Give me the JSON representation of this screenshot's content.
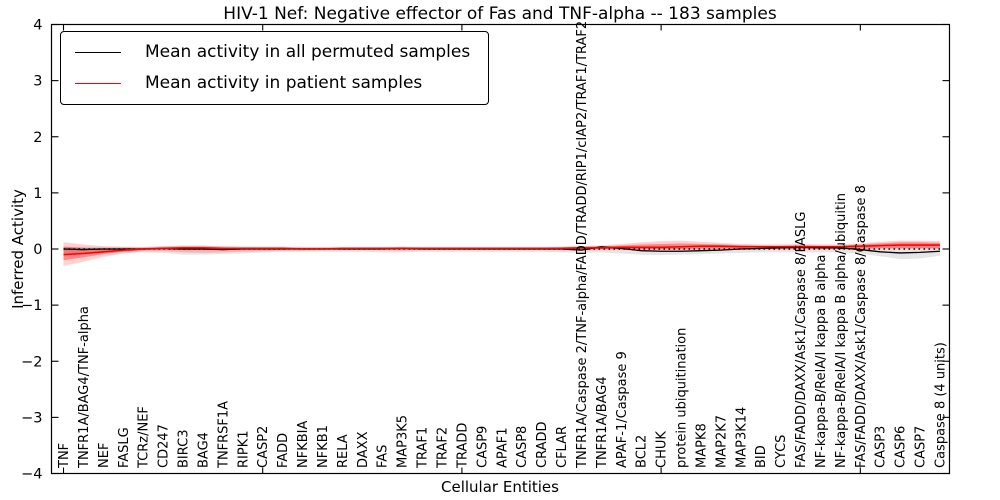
{
  "figure": {
    "title": "HIV-1 Nef: Negative effector of Fas and TNF-alpha -- 183 samples",
    "xlabel": "Cellular Entities",
    "ylabel": "Inferred Activity",
    "sample_count_text": "183 samples"
  },
  "chart_data": {
    "type": "line",
    "title": "HIV-1 Nef: Negative effector of Fas and TNF-alpha -- 183 samples",
    "xlabel": "Cellular Entities",
    "ylabel": "Inferred Activity",
    "ylim": [
      -4,
      4
    ],
    "yticks": [
      -4,
      -3,
      -2,
      -1,
      0,
      1,
      2,
      3,
      4
    ],
    "x_major_ticks": [
      0,
      10,
      20,
      30,
      40
    ],
    "grid": false,
    "legend_position": "upper left",
    "categories": [
      "TNF",
      "TNFR1A/BAG4/TNF-alpha",
      "NEF",
      "FASLG",
      "TCRz/NEF",
      "CD247",
      "BIRC3",
      "BAG4",
      "TNFRSF1A",
      "RIPK1",
      "CASP2",
      "FADD",
      "NFKBIA",
      "NFKB1",
      "RELA",
      "DAXX",
      "FAS",
      "MAP3K5",
      "TRAF1",
      "TRAF2",
      "TRADD",
      "CASP9",
      "APAF1",
      "CASP8",
      "CRADD",
      "CFLAR",
      "TNFR1A/Caspase 2/TNF-alpha/FADD/TRADD/RIP1/cIAP2/TRAF1/TRAF2",
      "TNFR1A/BAG4",
      "APAF-1/Caspase 9",
      "BCL2",
      "CHUK",
      "protein ubiquitination",
      "MAPK8",
      "MAP2K7",
      "MAP3K14",
      "BID",
      "CYCS",
      "FAS/FADD/DAXX/Ask1/Caspase 8/FASLG",
      "NF-kappa-B/RelA/I kappa B alpha",
      "NF-kappa-B/RelA/I kappa B alpha/ubiquitin",
      "FAS/FADD/DAXX/Ask1/Caspase 8/Caspase 8",
      "CASP3",
      "CASP6",
      "CASP7",
      "Caspase 8 (4 units)"
    ],
    "series": [
      {
        "name": "Mean activity in all permuted samples",
        "color": "#000000",
        "values": [
          0.0,
          -0.01,
          0.0,
          0.0,
          0.0,
          0.01,
          0.0,
          0.0,
          -0.01,
          0.0,
          0.0,
          0.0,
          0.0,
          0.0,
          0.0,
          0.0,
          0.0,
          0.01,
          0.0,
          0.0,
          0.0,
          0.0,
          0.0,
          0.0,
          0.0,
          0.0,
          -0.02,
          0.04,
          0.01,
          -0.03,
          -0.04,
          -0.04,
          -0.03,
          -0.02,
          0.0,
          0.01,
          0.02,
          0.03,
          0.02,
          0.02,
          -0.01,
          -0.05,
          -0.07,
          -0.06,
          -0.04
        ]
      },
      {
        "name": "Mean activity in patient samples",
        "color": "#ff0000",
        "values": [
          -0.1,
          -0.08,
          -0.05,
          -0.02,
          0.0,
          0.01,
          0.02,
          0.02,
          0.01,
          0.01,
          0.01,
          0.01,
          0.0,
          0.0,
          0.01,
          0.01,
          0.01,
          0.01,
          0.01,
          0.01,
          0.01,
          0.01,
          0.01,
          0.01,
          0.01,
          0.01,
          0.02,
          0.02,
          0.03,
          0.03,
          0.03,
          0.04,
          0.05,
          0.05,
          0.04,
          0.04,
          0.04,
          0.04,
          0.04,
          0.04,
          0.05,
          0.06,
          0.07,
          0.07,
          0.07
        ]
      }
    ],
    "bands": [
      {
        "name": "permuted-range",
        "color": "#000000",
        "opacity": 0.1,
        "lower": [
          -0.1,
          -0.09,
          -0.07,
          -0.06,
          -0.06,
          -0.07,
          -0.1,
          -0.1,
          -0.09,
          -0.08,
          -0.06,
          -0.05,
          -0.05,
          -0.05,
          -0.05,
          -0.05,
          -0.06,
          -0.06,
          -0.05,
          -0.05,
          -0.05,
          -0.05,
          -0.05,
          -0.05,
          -0.05,
          -0.06,
          -0.07,
          -0.06,
          -0.08,
          -0.1,
          -0.11,
          -0.1,
          -0.09,
          -0.08,
          -0.07,
          -0.06,
          -0.06,
          -0.06,
          -0.06,
          -0.06,
          -0.08,
          -0.13,
          -0.18,
          -0.17,
          -0.12
        ],
        "upper": [
          0.04,
          0.04,
          0.04,
          0.04,
          0.04,
          0.05,
          0.05,
          0.05,
          0.05,
          0.04,
          0.04,
          0.04,
          0.04,
          0.04,
          0.04,
          0.04,
          0.04,
          0.04,
          0.04,
          0.04,
          0.04,
          0.04,
          0.04,
          0.04,
          0.04,
          0.04,
          0.05,
          0.06,
          0.05,
          0.04,
          0.04,
          0.04,
          0.04,
          0.04,
          0.04,
          0.04,
          0.05,
          0.05,
          0.05,
          0.05,
          0.04,
          0.04,
          0.04,
          0.04,
          0.04
        ]
      },
      {
        "name": "patient-range-outer",
        "color": "#ff0000",
        "opacity": 0.18,
        "lower": [
          -0.3,
          -0.23,
          -0.14,
          -0.08,
          -0.04,
          -0.04,
          -0.06,
          -0.07,
          -0.06,
          -0.05,
          -0.04,
          -0.03,
          -0.03,
          -0.02,
          -0.02,
          -0.02,
          -0.02,
          -0.03,
          -0.02,
          -0.02,
          -0.02,
          -0.02,
          -0.02,
          -0.02,
          -0.02,
          -0.02,
          -0.03,
          -0.02,
          -0.02,
          -0.02,
          -0.02,
          -0.02,
          -0.01,
          -0.01,
          -0.01,
          -0.01,
          -0.01,
          -0.01,
          -0.01,
          -0.01,
          -0.01,
          0.0,
          0.0,
          0.0,
          0.0
        ],
        "upper": [
          0.12,
          0.08,
          0.05,
          0.04,
          0.03,
          0.05,
          0.06,
          0.06,
          0.05,
          0.04,
          0.04,
          0.04,
          0.03,
          0.03,
          0.03,
          0.03,
          0.03,
          0.04,
          0.03,
          0.03,
          0.03,
          0.03,
          0.03,
          0.03,
          0.03,
          0.04,
          0.05,
          0.06,
          0.09,
          0.12,
          0.14,
          0.15,
          0.13,
          0.11,
          0.09,
          0.08,
          0.08,
          0.09,
          0.08,
          0.08,
          0.1,
          0.13,
          0.15,
          0.15,
          0.14
        ]
      },
      {
        "name": "patient-range-inner",
        "color": "#ff0000",
        "opacity": 0.35,
        "lower": [
          -0.2,
          -0.15,
          -0.09,
          -0.05,
          -0.02,
          -0.01,
          -0.02,
          -0.02,
          -0.02,
          -0.01,
          -0.01,
          -0.01,
          -0.01,
          -0.01,
          -0.01,
          -0.01,
          -0.01,
          -0.01,
          -0.01,
          -0.01,
          -0.01,
          -0.01,
          -0.01,
          -0.01,
          -0.01,
          -0.01,
          -0.01,
          0.0,
          0.0,
          0.0,
          0.0,
          0.0,
          0.01,
          0.01,
          0.01,
          0.01,
          0.01,
          0.01,
          0.01,
          0.01,
          0.01,
          0.02,
          0.02,
          0.02,
          0.02
        ],
        "upper": [
          0.04,
          0.02,
          0.01,
          0.01,
          0.02,
          0.03,
          0.04,
          0.04,
          0.03,
          0.02,
          0.02,
          0.02,
          0.02,
          0.02,
          0.02,
          0.02,
          0.02,
          0.02,
          0.02,
          0.02,
          0.02,
          0.02,
          0.02,
          0.02,
          0.02,
          0.03,
          0.04,
          0.04,
          0.06,
          0.08,
          0.09,
          0.1,
          0.09,
          0.08,
          0.07,
          0.06,
          0.06,
          0.07,
          0.06,
          0.06,
          0.08,
          0.1,
          0.12,
          0.12,
          0.11
        ]
      }
    ],
    "zero_line": {
      "style": "dotted",
      "color": "#000000",
      "y": 0
    }
  }
}
